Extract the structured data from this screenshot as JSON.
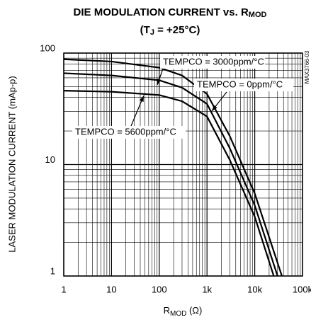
{
  "chart_data": {
    "type": "line",
    "title": {
      "text": "DIE MODULATION CURRENT vs. R",
      "sub": "MOD"
    },
    "subtitle": {
      "pre": "(T",
      "sub": "J",
      "post": " = +25°C)"
    },
    "xlabel": {
      "text": "R",
      "sub": "MOD",
      "post": " (Ω)"
    },
    "ylabel": "LASER MODULATION CURRENT (mAp-p)",
    "side_label": "MAX3766-03",
    "log_x": true,
    "log_y": true,
    "grid": true,
    "xlim": [
      1,
      100000
    ],
    "ylim": [
      1,
      100
    ],
    "xticks": [
      1,
      10,
      100,
      {
        "value": 1000,
        "label": "1k"
      },
      {
        "value": 10000,
        "label": "10k"
      },
      {
        "value": 100000,
        "label": "100k"
      }
    ],
    "yticks": [
      1,
      10,
      100
    ],
    "series": [
      {
        "name": "TEMPCO = 0ppm/°C",
        "color": "#000000",
        "x": [
          1,
          10,
          100,
          300,
          1000,
          3000,
          10000,
          37000
        ],
        "values": [
          88,
          84,
          74,
          63,
          43,
          18,
          5.5,
          1
        ]
      },
      {
        "name": "TEMPCO = 3000ppm/°C",
        "color": "#000000",
        "x": [
          1,
          10,
          100,
          300,
          1000,
          3000,
          10000,
          30000
        ],
        "values": [
          66,
          63,
          57,
          49,
          35,
          14,
          4.3,
          1
        ]
      },
      {
        "name": "TEMPCO = 5600ppm/°C",
        "color": "#000000",
        "x": [
          1,
          10,
          100,
          300,
          1000,
          3000,
          10000,
          25000
        ],
        "values": [
          46,
          45,
          42,
          37,
          27,
          11,
          3.4,
          1
        ]
      }
    ]
  }
}
